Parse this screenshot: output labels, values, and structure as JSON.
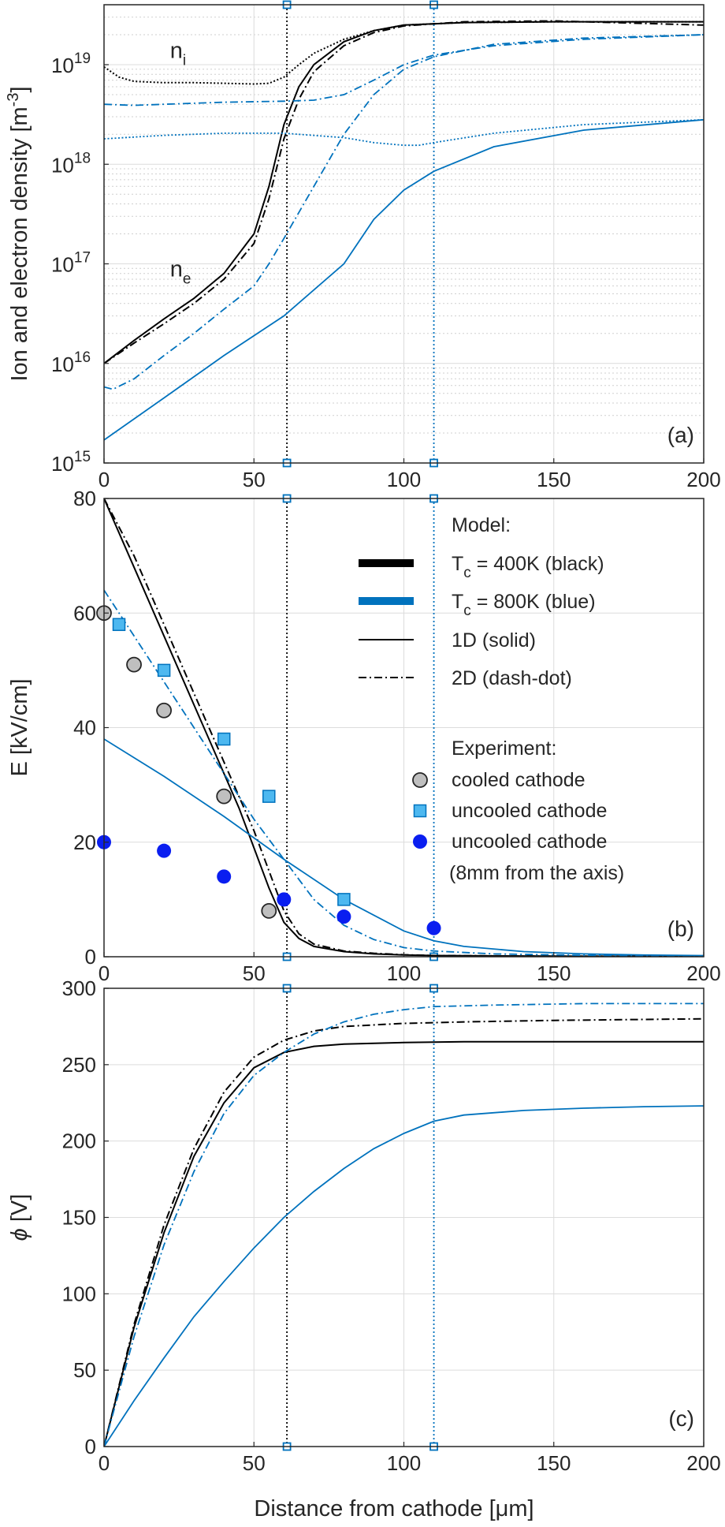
{
  "figure": {
    "shared_xlabel": "Distance from cathode [μm]",
    "colors": {
      "black": "#000000",
      "blue": "#0072bd",
      "exp_grey": "#bfbfbf",
      "exp_lightblue": "#4db8f0",
      "exp_blue": "#0a1ef0"
    },
    "vlines": [
      61,
      110
    ]
  },
  "chart_data": [
    {
      "id": "a",
      "type": "line",
      "panel_label": "(a)",
      "yscale": "log",
      "xlim": [
        0,
        200
      ],
      "ylim": [
        1000000000000000.0,
        4e+19
      ],
      "xlabel": "",
      "ylabel": "Ion and electron density [m⁻³]",
      "xticks": [
        0,
        50,
        100,
        150,
        200
      ],
      "yticks": [
        {
          "value": 1000000000000000.0,
          "base": "10",
          "exp": "15"
        },
        {
          "value": 1e+16,
          "base": "10",
          "exp": "16"
        },
        {
          "value": 1e+17,
          "base": "10",
          "exp": "17"
        },
        {
          "value": 1e+18,
          "base": "10",
          "exp": "18"
        },
        {
          "value": 1e+19,
          "base": "10",
          "exp": "19"
        }
      ],
      "annotations": [
        {
          "id": "ni",
          "base": "n",
          "sub": "i",
          "x": 22,
          "y": 1.4e+19
        },
        {
          "id": "ne",
          "base": "n",
          "sub": "e",
          "x": 22,
          "y": 9e+16
        }
      ],
      "series": [
        {
          "color": "black",
          "style": "solid",
          "x": [
            0,
            10,
            20,
            30,
            40,
            50,
            55,
            60,
            65,
            70,
            80,
            90,
            100,
            120,
            150,
            200
          ],
          "y": [
            1e+16,
            1.7e+16,
            2.8e+16,
            4.5e+16,
            8e+16,
            2e+17,
            6e+17,
            2.5e+18,
            6e+18,
            1e+19,
            1.7e+19,
            2.2e+19,
            2.5e+19,
            2.65e+19,
            2.7e+19,
            2.7e+19
          ]
        },
        {
          "color": "black",
          "style": "dashdot",
          "x": [
            0,
            10,
            20,
            30,
            40,
            50,
            55,
            60,
            65,
            70,
            80,
            90,
            100,
            120,
            150,
            200
          ],
          "y": [
            1e+16,
            1.6e+16,
            2.5e+16,
            4e+16,
            7e+16,
            1.6e+17,
            4.5e+17,
            1.8e+18,
            4.5e+18,
            8.5e+18,
            1.55e+19,
            2.1e+19,
            2.45e+19,
            2.7e+19,
            2.75e+19,
            2.5e+19
          ]
        },
        {
          "color": "black",
          "style": "dotted",
          "x": [
            0,
            5,
            10,
            20,
            30,
            40,
            50,
            55,
            60,
            65,
            70,
            80,
            90,
            100,
            120,
            150,
            200
          ],
          "y": [
            9.5e+18,
            7.5e+18,
            6.8e+18,
            6.6e+18,
            6.6e+18,
            6.5e+18,
            6.4e+18,
            6.5e+18,
            7.5e+18,
            1e+19,
            1.3e+19,
            1.8e+19,
            2.2e+19,
            2.5e+19,
            2.65e+19,
            2.7e+19,
            2.7e+19
          ]
        },
        {
          "color": "blue",
          "style": "solid",
          "x": [
            0,
            20,
            40,
            60,
            80,
            90,
            100,
            110,
            130,
            160,
            200
          ],
          "y": [
            1700000000000000.0,
            4500000000000000.0,
            1.2e+16,
            3e+16,
            1e+17,
            2.8e+17,
            5.5e+17,
            8.5e+17,
            1.5e+18,
            2.2e+18,
            2.8e+18
          ]
        },
        {
          "color": "blue",
          "style": "dashdot",
          "x": [
            0,
            3,
            10,
            20,
            30,
            40,
            50,
            55,
            60,
            70,
            80,
            90,
            100,
            110,
            130,
            160,
            200
          ],
          "y": [
            5800000000000000.0,
            5500000000000000.0,
            7000000000000000.0,
            1.2e+16,
            2e+16,
            3.5e+16,
            6e+16,
            1e+17,
            1.8e+17,
            6e+17,
            2e+18,
            5e+18,
            9e+18,
            1.2e+19,
            1.6e+19,
            1.85e+19,
            2e+19
          ]
        },
        {
          "color": "blue",
          "style": "dashdot",
          "x": [
            0,
            10,
            20,
            40,
            60,
            70,
            80,
            90,
            100,
            110,
            130,
            160,
            200
          ],
          "y": [
            4e+18,
            3.9e+18,
            4e+18,
            4.2e+18,
            4.3e+18,
            4.4e+18,
            5e+18,
            7e+18,
            1e+19,
            1.25e+19,
            1.55e+19,
            1.8e+19,
            2e+19
          ]
        },
        {
          "color": "blue",
          "style": "dotted",
          "x": [
            0,
            20,
            40,
            60,
            80,
            90,
            100,
            105,
            110,
            130,
            160,
            200
          ],
          "y": [
            1.8e+18,
            1.95e+18,
            2.05e+18,
            2.05e+18,
            1.85e+18,
            1.65e+18,
            1.55e+18,
            1.55e+18,
            1.65e+18,
            2.05e+18,
            2.5e+18,
            2.8e+18
          ]
        }
      ]
    },
    {
      "id": "b",
      "type": "line",
      "panel_label": "(b)",
      "xlim": [
        0,
        200
      ],
      "ylim": [
        0,
        80
      ],
      "xlabel": "",
      "ylabel": "E [kV/cm]",
      "xticks": [
        0,
        50,
        100,
        150,
        200
      ],
      "yticks": [
        0,
        20,
        40,
        60,
        80
      ],
      "legend": {
        "model_title": "Model:",
        "model_items": [
          {
            "label_main": "T",
            "label_sub": "c",
            "label_rest": " = 400K (black)",
            "color": "black",
            "style": "thick"
          },
          {
            "label_main": "T",
            "label_sub": "c",
            "label_rest": " = 800K (blue)",
            "color": "blue",
            "style": "thick"
          },
          {
            "label_main": "1D (solid)",
            "color": "black",
            "style": "solid"
          },
          {
            "label_main": "2D (dash-dot)",
            "color": "black",
            "style": "dashdot"
          }
        ],
        "exp_title": "Experiment:",
        "exp_items": [
          {
            "label": "cooled cathode",
            "marker": "circle",
            "color": "exp_grey"
          },
          {
            "label": "uncooled cathode",
            "marker": "square",
            "color": "exp_lightblue"
          },
          {
            "label": "uncooled cathode",
            "label2": "(8mm from the axis)",
            "marker": "dot",
            "color": "exp_blue"
          }
        ]
      },
      "series": [
        {
          "color": "black",
          "style": "solid",
          "x": [
            0,
            10,
            20,
            30,
            40,
            45,
            50,
            55,
            60,
            65,
            70,
            80,
            90,
            100,
            110,
            150,
            200
          ],
          "y": [
            80,
            68,
            56,
            44,
            32,
            26,
            19,
            12,
            6,
            3.2,
            1.8,
            0.9,
            0.5,
            0.3,
            0.2,
            0.1,
            0.05
          ]
        },
        {
          "color": "black",
          "style": "dashdot",
          "x": [
            0,
            10,
            20,
            30,
            40,
            45,
            50,
            55,
            60,
            65,
            70,
            80,
            90,
            100,
            110,
            150,
            200
          ],
          "y": [
            80,
            70,
            58,
            46,
            34,
            28,
            22,
            15,
            8,
            4,
            2.2,
            1,
            0.6,
            0.35,
            0.2,
            0.1,
            0.05
          ]
        },
        {
          "color": "blue",
          "style": "solid",
          "x": [
            0,
            20,
            40,
            60,
            80,
            100,
            110,
            120,
            140,
            160,
            180,
            200
          ],
          "y": [
            38,
            31.5,
            24.5,
            17,
            10,
            4.5,
            2.8,
            1.8,
            0.9,
            0.5,
            0.3,
            0.2
          ]
        },
        {
          "color": "blue",
          "style": "dashdot",
          "x": [
            0,
            10,
            20,
            30,
            40,
            50,
            60,
            70,
            80,
            90,
            100,
            110,
            130,
            160,
            200
          ],
          "y": [
            64,
            56,
            48,
            40,
            32,
            24,
            17,
            10,
            5.5,
            3,
            1.6,
            1,
            0.5,
            0.25,
            0.1
          ]
        }
      ],
      "markers": [
        {
          "name": "cooled cathode",
          "marker": "circle",
          "color": "exp_grey",
          "x": [
            0,
            10,
            20,
            40,
            55
          ],
          "y": [
            60,
            51,
            43,
            28,
            8
          ]
        },
        {
          "name": "uncooled cathode",
          "marker": "square",
          "color": "exp_lightblue",
          "x": [
            5,
            20,
            40,
            55,
            80
          ],
          "y": [
            58,
            50,
            38,
            28,
            10
          ]
        },
        {
          "name": "uncooled cathode (8mm from the axis)",
          "marker": "dot",
          "color": "exp_blue",
          "x": [
            0,
            20,
            40,
            60,
            80,
            110
          ],
          "y": [
            20,
            18.5,
            14,
            10,
            7,
            5
          ]
        }
      ]
    },
    {
      "id": "c",
      "type": "line",
      "panel_label": "(c)",
      "xlim": [
        0,
        200
      ],
      "ylim": [
        0,
        300
      ],
      "xlabel": "Distance from cathode [μm]",
      "ylabel": "ϕ [V]",
      "xticks": [
        0,
        50,
        100,
        150,
        200
      ],
      "yticks": [
        0,
        50,
        100,
        150,
        200,
        250,
        300
      ],
      "series": [
        {
          "color": "black",
          "style": "solid",
          "x": [
            0,
            10,
            20,
            30,
            40,
            50,
            60,
            70,
            80,
            100,
            120,
            150,
            200
          ],
          "y": [
            0,
            78,
            140,
            190,
            225,
            248,
            258,
            262,
            263.5,
            264.5,
            265,
            265,
            265
          ]
        },
        {
          "color": "black",
          "style": "dashdot",
          "x": [
            0,
            10,
            20,
            30,
            40,
            50,
            60,
            70,
            80,
            100,
            120,
            150,
            200
          ],
          "y": [
            0,
            80,
            145,
            195,
            232,
            255,
            266,
            272,
            275,
            277,
            278,
            279,
            280
          ]
        },
        {
          "color": "blue",
          "style": "solid",
          "x": [
            0,
            10,
            20,
            30,
            40,
            50,
            60,
            70,
            80,
            90,
            100,
            110,
            120,
            140,
            160,
            180,
            200
          ],
          "y": [
            0,
            30,
            58,
            85,
            108,
            130,
            150,
            167,
            182,
            195,
            205,
            213,
            217,
            220,
            221.5,
            222.5,
            223
          ]
        },
        {
          "color": "blue",
          "style": "dashdot",
          "x": [
            0,
            10,
            20,
            30,
            40,
            50,
            60,
            70,
            80,
            90,
            100,
            110,
            130,
            160,
            200
          ],
          "y": [
            0,
            72,
            132,
            180,
            218,
            243,
            258,
            270,
            278,
            283,
            286,
            288,
            289,
            290,
            290
          ]
        }
      ]
    }
  ]
}
